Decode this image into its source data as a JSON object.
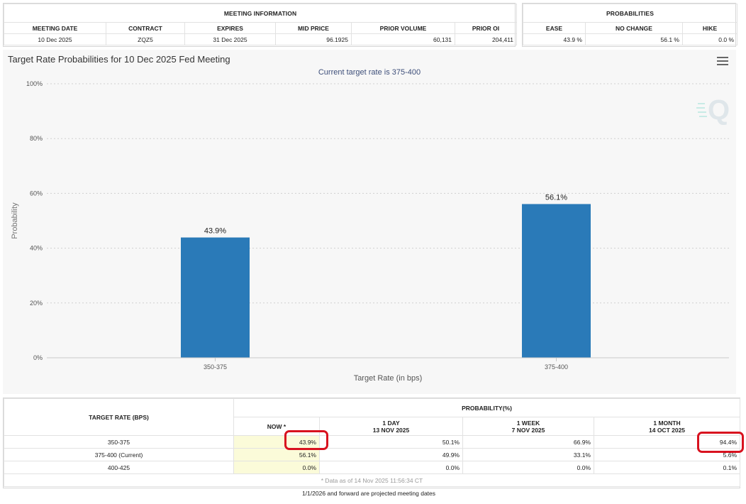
{
  "meeting_info": {
    "caption": "MEETING INFORMATION",
    "headers": [
      "MEETING DATE",
      "CONTRACT",
      "EXPIRES",
      "MID PRICE",
      "PRIOR VOLUME",
      "PRIOR OI"
    ],
    "row": [
      "10 Dec 2025",
      "ZQZ5",
      "31 Dec 2025",
      "96.1925",
      "60,131",
      "204,411"
    ]
  },
  "probabilities": {
    "caption": "PROBABILITIES",
    "headers": [
      "EASE",
      "NO CHANGE",
      "HIKE"
    ],
    "row": [
      "43.9 %",
      "56.1 %",
      "0.0 %"
    ]
  },
  "chart_data": {
    "type": "bar",
    "title": "Target Rate Probabilities for 10 Dec 2025 Fed Meeting",
    "subtitle": "Current target rate is 375-400",
    "xlabel": "Target Rate (in bps)",
    "ylabel": "Probability",
    "categories": [
      "350-375",
      "375-400"
    ],
    "values": [
      43.9,
      56.1
    ],
    "data_labels": [
      "43.9%",
      "56.1%"
    ],
    "ylim": [
      0,
      100
    ],
    "yticks": [
      0,
      20,
      40,
      60,
      80,
      100
    ],
    "ytick_labels": [
      "0%",
      "20%",
      "40%",
      "60%",
      "80%",
      "100%"
    ],
    "grid": true,
    "bar_color": "#2a7ab8"
  },
  "prob_table": {
    "col_header_rate": "TARGET RATE (BPS)",
    "col_header_prob": "PROBABILITY(%)",
    "sub_headers": [
      {
        "label": "NOW *",
        "date": ""
      },
      {
        "label": "1 DAY",
        "date": "13 NOV 2025"
      },
      {
        "label": "1 WEEK",
        "date": "7 NOV 2025"
      },
      {
        "label": "1 MONTH",
        "date": "14 OCT 2025"
      }
    ],
    "rows": [
      {
        "rate": "350-375",
        "values": [
          "43.9%",
          "50.1%",
          "66.9%",
          "94.4%"
        ]
      },
      {
        "rate": "375-400 (Current)",
        "values": [
          "56.1%",
          "49.9%",
          "33.1%",
          "5.6%"
        ]
      },
      {
        "rate": "400-425",
        "values": [
          "0.0%",
          "0.0%",
          "0.0%",
          "0.1%"
        ]
      }
    ],
    "data_note": "* Data as of 14 Nov 2025 11:56:34 CT"
  },
  "footer_note": "1/1/2026 and forward are projected meeting dates"
}
